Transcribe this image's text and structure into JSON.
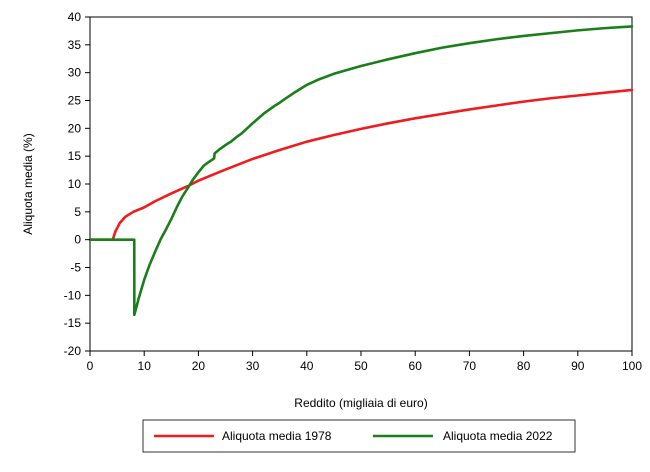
{
  "chart_data": {
    "type": "line",
    "title": "",
    "xlabel": "Reddito (migliaia di euro)",
    "ylabel": "Aliquota media (%)",
    "xlim": [
      0,
      100
    ],
    "ylim": [
      -20,
      40
    ],
    "x_ticks": [
      0,
      10,
      20,
      30,
      40,
      50,
      60,
      70,
      80,
      90,
      100
    ],
    "y_ticks": [
      -20,
      -15,
      -10,
      -5,
      0,
      5,
      10,
      15,
      20,
      25,
      30,
      35,
      40
    ],
    "grid": false,
    "legend_position": "bottom",
    "series": [
      {
        "name": "Aliquota media 1978",
        "color": "#ee1c1c",
        "points": [
          [
            0,
            0
          ],
          [
            4.2,
            0
          ],
          [
            4.7,
            1.5
          ],
          [
            5.5,
            3.0
          ],
          [
            6.5,
            4.1
          ],
          [
            8,
            5.0
          ],
          [
            10,
            5.8
          ],
          [
            12,
            6.9
          ],
          [
            15,
            8.3
          ],
          [
            18,
            9.6
          ],
          [
            20,
            10.6
          ],
          [
            22,
            11.4
          ],
          [
            25,
            12.6
          ],
          [
            30,
            14.5
          ],
          [
            35,
            16.1
          ],
          [
            40,
            17.6
          ],
          [
            45,
            18.8
          ],
          [
            50,
            19.9
          ],
          [
            55,
            20.9
          ],
          [
            60,
            21.8
          ],
          [
            65,
            22.6
          ],
          [
            70,
            23.4
          ],
          [
            75,
            24.1
          ],
          [
            80,
            24.8
          ],
          [
            85,
            25.4
          ],
          [
            90,
            25.9
          ],
          [
            95,
            26.4
          ],
          [
            100,
            26.9
          ]
        ]
      },
      {
        "name": "Aliquota media 2022",
        "color": "#1a7f1a",
        "points": [
          [
            0,
            0
          ],
          [
            8.17,
            0
          ],
          [
            8.18,
            -13.5
          ],
          [
            9,
            -10.5
          ],
          [
            10,
            -7.2
          ],
          [
            11,
            -4.5
          ],
          [
            12,
            -2.2
          ],
          [
            13,
            0
          ],
          [
            14,
            1.8
          ],
          [
            15,
            3.7
          ],
          [
            16,
            5.8
          ],
          [
            17,
            7.7
          ],
          [
            18,
            9.2
          ],
          [
            19,
            10.8
          ],
          [
            20,
            12.1
          ],
          [
            21,
            13.3
          ],
          [
            22,
            14.0
          ],
          [
            22.9,
            14.6
          ],
          [
            23,
            15.5
          ],
          [
            24,
            16.3
          ],
          [
            25,
            17.0
          ],
          [
            26,
            17.6
          ],
          [
            27,
            18.4
          ],
          [
            28,
            19.1
          ],
          [
            30,
            20.9
          ],
          [
            32,
            22.6
          ],
          [
            34,
            24.0
          ],
          [
            35,
            24.6
          ],
          [
            36,
            25.3
          ],
          [
            38,
            26.6
          ],
          [
            40,
            27.8
          ],
          [
            42,
            28.7
          ],
          [
            45,
            29.8
          ],
          [
            50,
            31.2
          ],
          [
            55,
            32.4
          ],
          [
            60,
            33.5
          ],
          [
            65,
            34.5
          ],
          [
            70,
            35.3
          ],
          [
            75,
            36.0
          ],
          [
            80,
            36.6
          ],
          [
            85,
            37.1
          ],
          [
            90,
            37.6
          ],
          [
            95,
            38.0
          ],
          [
            100,
            38.3
          ]
        ]
      }
    ]
  }
}
